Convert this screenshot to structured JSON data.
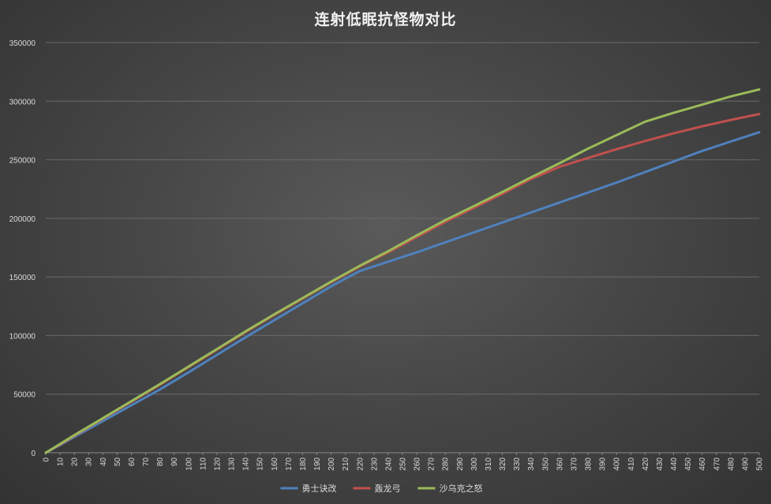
{
  "chart_data": {
    "type": "line",
    "title": "连射低眠抗怪物对比",
    "xlabel": "",
    "ylabel": "",
    "xlim": [
      0,
      500
    ],
    "ylim": [
      0,
      350000
    ],
    "x_ticks": [
      0,
      10,
      20,
      30,
      40,
      50,
      60,
      70,
      80,
      90,
      100,
      110,
      120,
      130,
      140,
      150,
      160,
      170,
      180,
      190,
      200,
      210,
      220,
      230,
      240,
      250,
      260,
      270,
      280,
      290,
      300,
      310,
      320,
      330,
      340,
      350,
      360,
      370,
      380,
      390,
      400,
      410,
      420,
      430,
      440,
      450,
      460,
      470,
      480,
      490,
      500
    ],
    "y_ticks": [
      0,
      50000,
      100000,
      150000,
      200000,
      250000,
      300000,
      350000
    ],
    "grid": "horizontal",
    "legend_position": "bottom",
    "series": [
      {
        "name": "勇士诀改",
        "color": "#4f81bd",
        "points": [
          [
            0,
            0
          ],
          [
            10,
            6500
          ],
          [
            20,
            13500
          ],
          [
            40,
            27000
          ],
          [
            60,
            40500
          ],
          [
            80,
            54000
          ],
          [
            100,
            68500
          ],
          [
            120,
            83500
          ],
          [
            140,
            98500
          ],
          [
            160,
            113000
          ],
          [
            180,
            127500
          ],
          [
            200,
            142000
          ],
          [
            220,
            155000
          ],
          [
            240,
            163000
          ],
          [
            260,
            171000
          ],
          [
            280,
            179500
          ],
          [
            300,
            188000
          ],
          [
            320,
            196500
          ],
          [
            340,
            205000
          ],
          [
            360,
            213500
          ],
          [
            380,
            222000
          ],
          [
            400,
            230500
          ],
          [
            420,
            239500
          ],
          [
            440,
            248500
          ],
          [
            460,
            257500
          ],
          [
            480,
            265500
          ],
          [
            500,
            273500
          ]
        ]
      },
      {
        "name": "轰龙弓",
        "color": "#c0504d",
        "points": [
          [
            0,
            0
          ],
          [
            10,
            7000
          ],
          [
            20,
            14500
          ],
          [
            40,
            29000
          ],
          [
            60,
            43500
          ],
          [
            80,
            58000
          ],
          [
            100,
            73000
          ],
          [
            120,
            88000
          ],
          [
            140,
            103000
          ],
          [
            160,
            117500
          ],
          [
            180,
            131500
          ],
          [
            200,
            145500
          ],
          [
            220,
            159000
          ],
          [
            240,
            171000
          ],
          [
            260,
            184000
          ],
          [
            280,
            197000
          ],
          [
            300,
            209000
          ],
          [
            320,
            221000
          ],
          [
            340,
            233500
          ],
          [
            360,
            244000
          ],
          [
            380,
            251500
          ],
          [
            400,
            259000
          ],
          [
            420,
            266000
          ],
          [
            440,
            272500
          ],
          [
            460,
            278500
          ],
          [
            480,
            284000
          ],
          [
            500,
            289000
          ]
        ]
      },
      {
        "name": "沙乌克之怒",
        "color": "#9bbb59",
        "points": [
          [
            0,
            0
          ],
          [
            10,
            7500
          ],
          [
            20,
            15000
          ],
          [
            40,
            29500
          ],
          [
            60,
            44000
          ],
          [
            80,
            58500
          ],
          [
            100,
            73500
          ],
          [
            120,
            88500
          ],
          [
            140,
            103500
          ],
          [
            160,
            118000
          ],
          [
            180,
            132000
          ],
          [
            200,
            146000
          ],
          [
            220,
            159500
          ],
          [
            240,
            172000
          ],
          [
            260,
            185500
          ],
          [
            280,
            198500
          ],
          [
            300,
            210500
          ],
          [
            320,
            222500
          ],
          [
            340,
            235000
          ],
          [
            360,
            247000
          ],
          [
            380,
            259500
          ],
          [
            400,
            271000
          ],
          [
            420,
            282500
          ],
          [
            440,
            290000
          ],
          [
            460,
            297000
          ],
          [
            480,
            304000
          ],
          [
            500,
            310000
          ]
        ]
      }
    ]
  }
}
